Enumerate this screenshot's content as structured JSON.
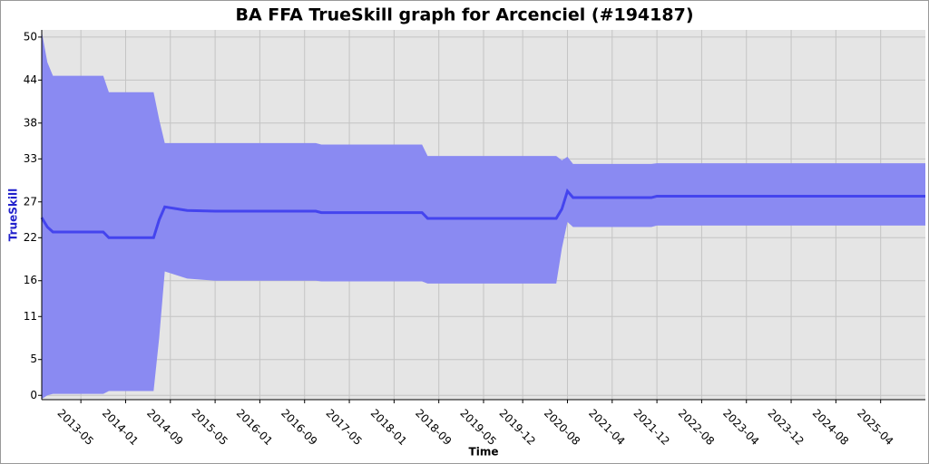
{
  "chart_data": {
    "type": "line",
    "title": "BA FFA TrueSkill graph for Arcenciel (#194187)",
    "x_label": "Time",
    "y_label": "TrueSkill",
    "x": [
      "2012-10",
      "2012-11",
      "2012-12",
      "2013-09",
      "2013-10",
      "2014-06",
      "2014-07",
      "2014-08",
      "2014-12",
      "2015-05",
      "2016-11",
      "2016-12",
      "2018-06",
      "2018-07",
      "2020-06",
      "2020-07",
      "2020-08",
      "2020-09",
      "2021-11",
      "2021-12",
      "2025-12"
    ],
    "series": [
      {
        "color": "#4444ee",
        "values": [
          24.8,
          23.5,
          22.8,
          22.8,
          22.0,
          22.0,
          24.5,
          26.3,
          25.8,
          25.7,
          25.7,
          25.5,
          25.5,
          24.7,
          24.7,
          26.0,
          28.5,
          27.6,
          27.6,
          27.8,
          27.8
        ]
      }
    ],
    "band": {
      "color": "#8a8af2",
      "upper": [
        50.8,
        46.5,
        44.6,
        44.6,
        42.3,
        42.3,
        38.5,
        35.2,
        35.2,
        35.2,
        35.2,
        35.0,
        35.0,
        33.4,
        33.4,
        32.8,
        33.3,
        32.3,
        32.3,
        32.4,
        32.4
      ],
      "lower": [
        -0.5,
        0.0,
        0.2,
        0.2,
        0.6,
        0.6,
        8.0,
        17.3,
        16.3,
        16.0,
        16.0,
        15.9,
        15.9,
        15.6,
        15.6,
        20.5,
        24.2,
        23.5,
        23.5,
        23.7,
        23.7
      ]
    },
    "xlim": [
      "2012-10",
      "2025-12"
    ],
    "xticks": [
      "2013-05",
      "2014-01",
      "2014-09",
      "2015-05",
      "2016-01",
      "2016-09",
      "2017-05",
      "2018-01",
      "2018-09",
      "2019-05",
      "2019-12",
      "2020-08",
      "2021-04",
      "2021-12",
      "2022-08",
      "2023-04",
      "2023-12",
      "2024-08",
      "2025-04"
    ],
    "ylim": [
      -0.6,
      51
    ],
    "yticks": [
      0,
      5,
      11,
      16,
      22,
      27,
      33,
      38,
      44,
      50
    ],
    "grid": true
  }
}
